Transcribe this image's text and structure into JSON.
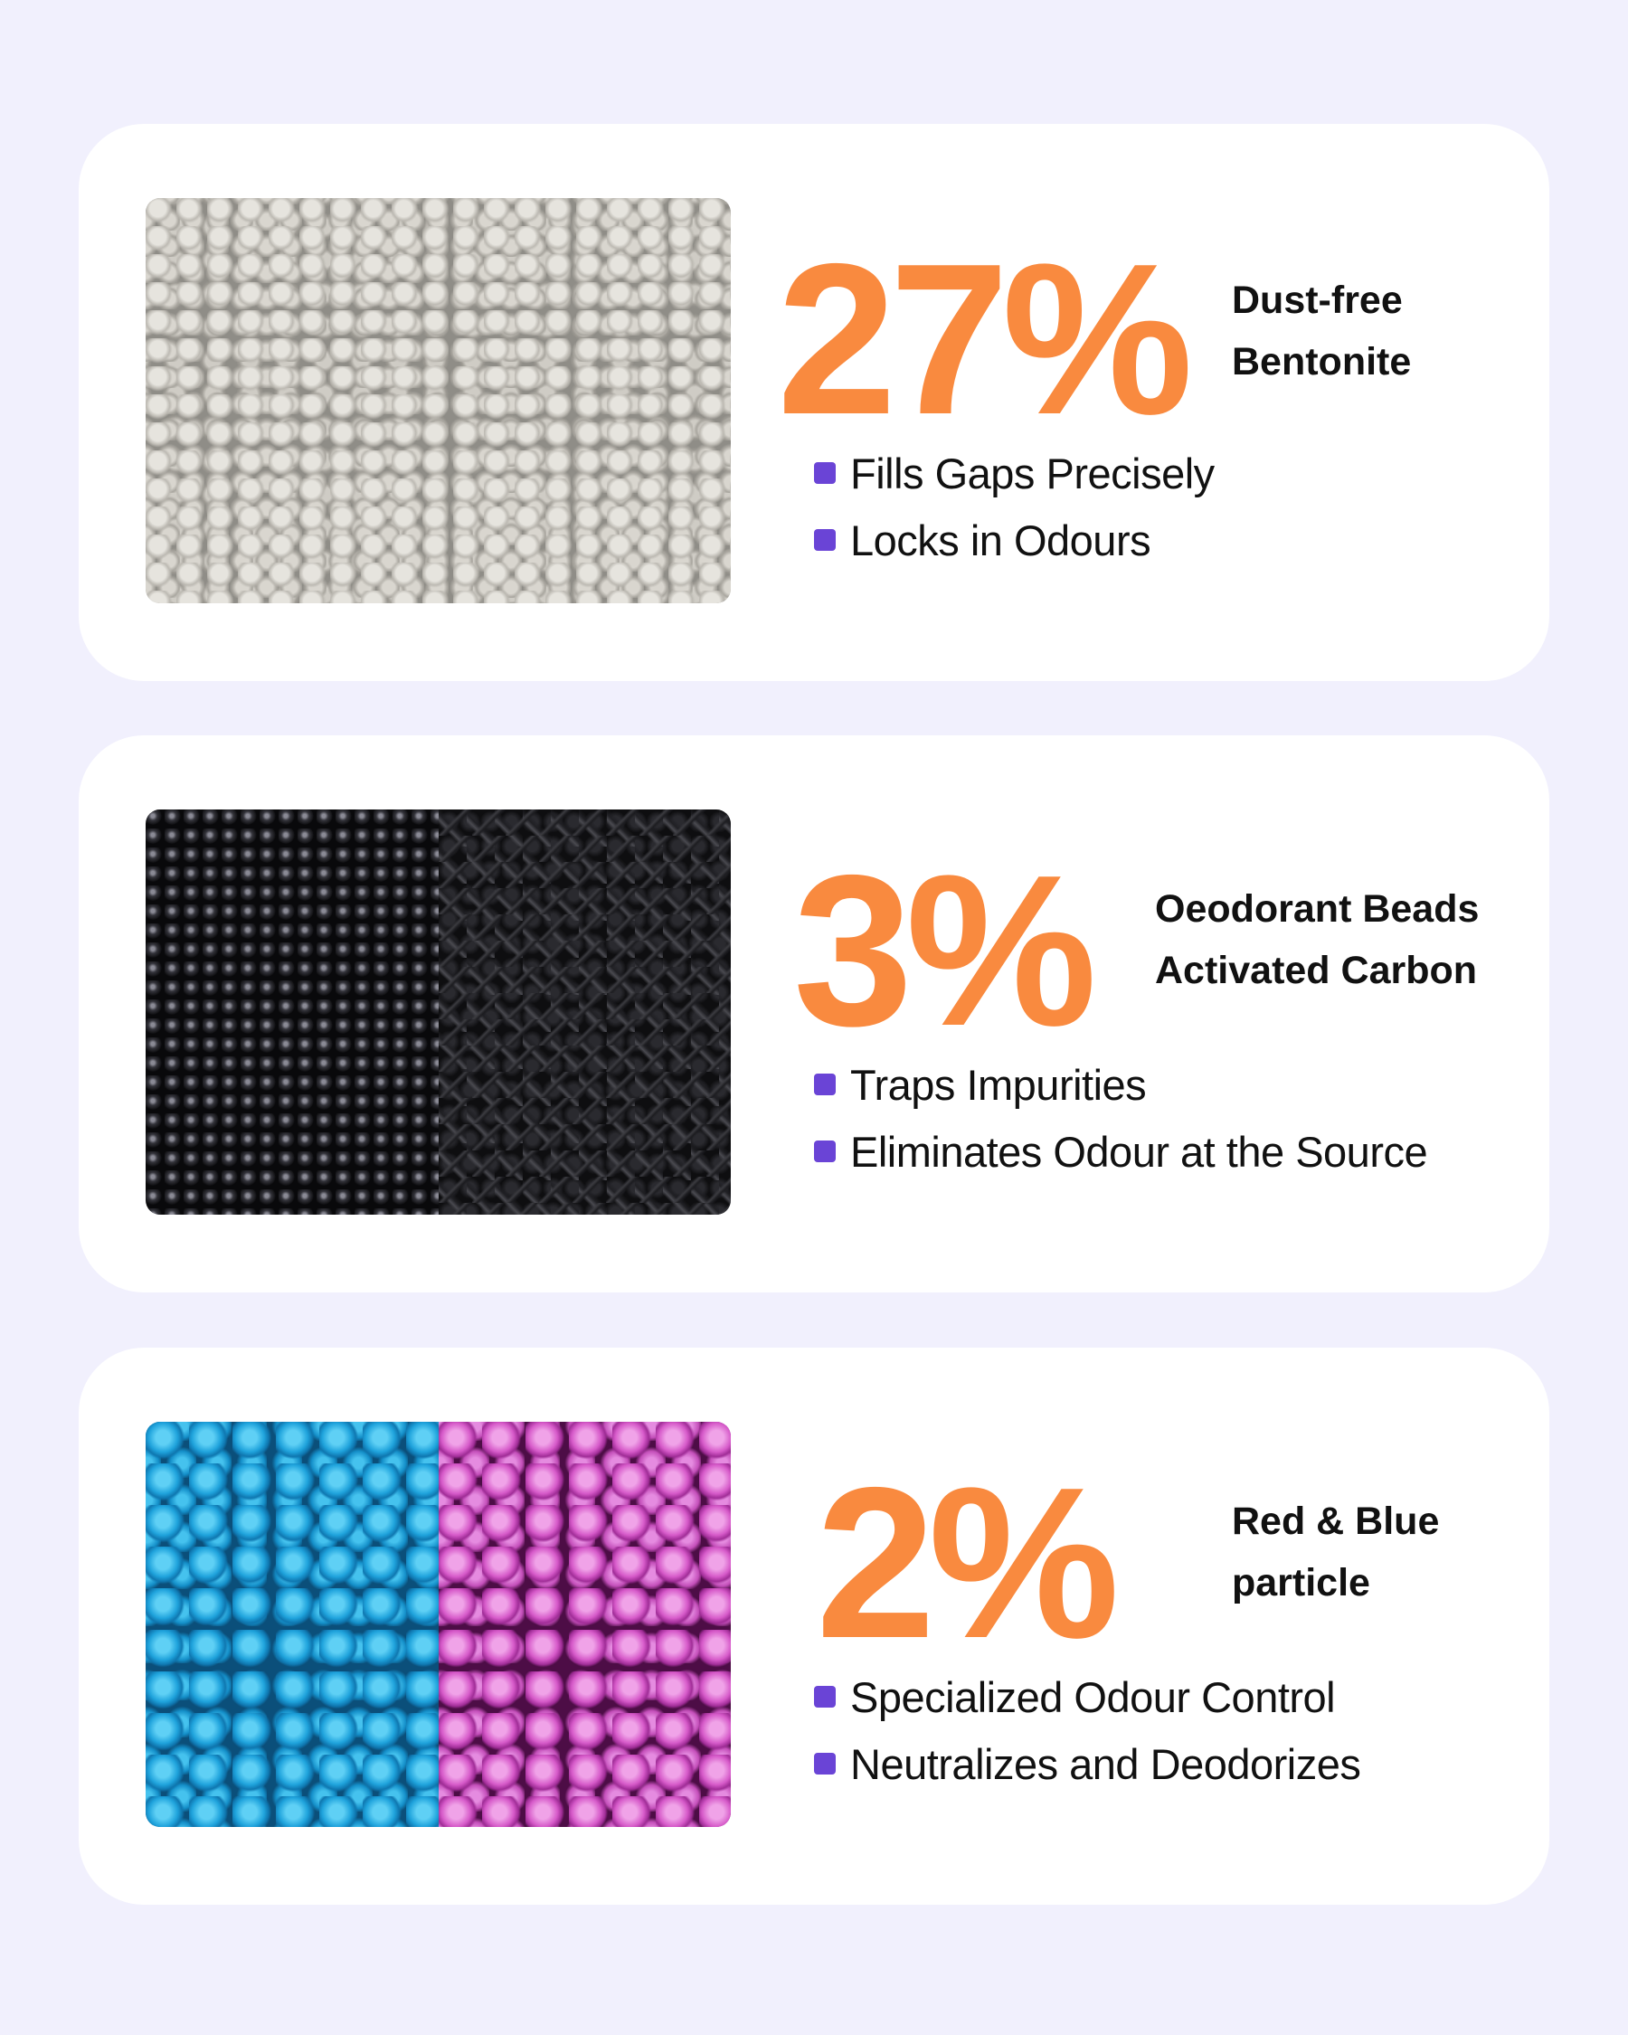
{
  "colors": {
    "background": "#f1f0fd",
    "card": "#ffffff",
    "accent_orange": "#f98a3f",
    "bullet_purple": "#6a44d6",
    "text": "#111111"
  },
  "cards": [
    {
      "photo": "grey bentonite clay granules",
      "percent": "27%",
      "label_line1": "Dust-free",
      "label_line2": "Bentonite",
      "bullets": [
        "Fills Gaps Precisely",
        "Locks in Odours"
      ]
    },
    {
      "photo": "black deodorant beads and activated carbon",
      "percent": "3%",
      "label_line1": "Oeodorant Beads",
      "label_line2": "Activated Carbon",
      "bullets": [
        "Traps Impurities",
        "Eliminates Odour at the Source"
      ]
    },
    {
      "photo": "blue and pink granules",
      "percent": "2%",
      "label_line1": "Red & Blue",
      "label_line2": "particle",
      "bullets": [
        "Specialized Odour Control",
        "Neutralizes and Deodorizes"
      ]
    }
  ]
}
